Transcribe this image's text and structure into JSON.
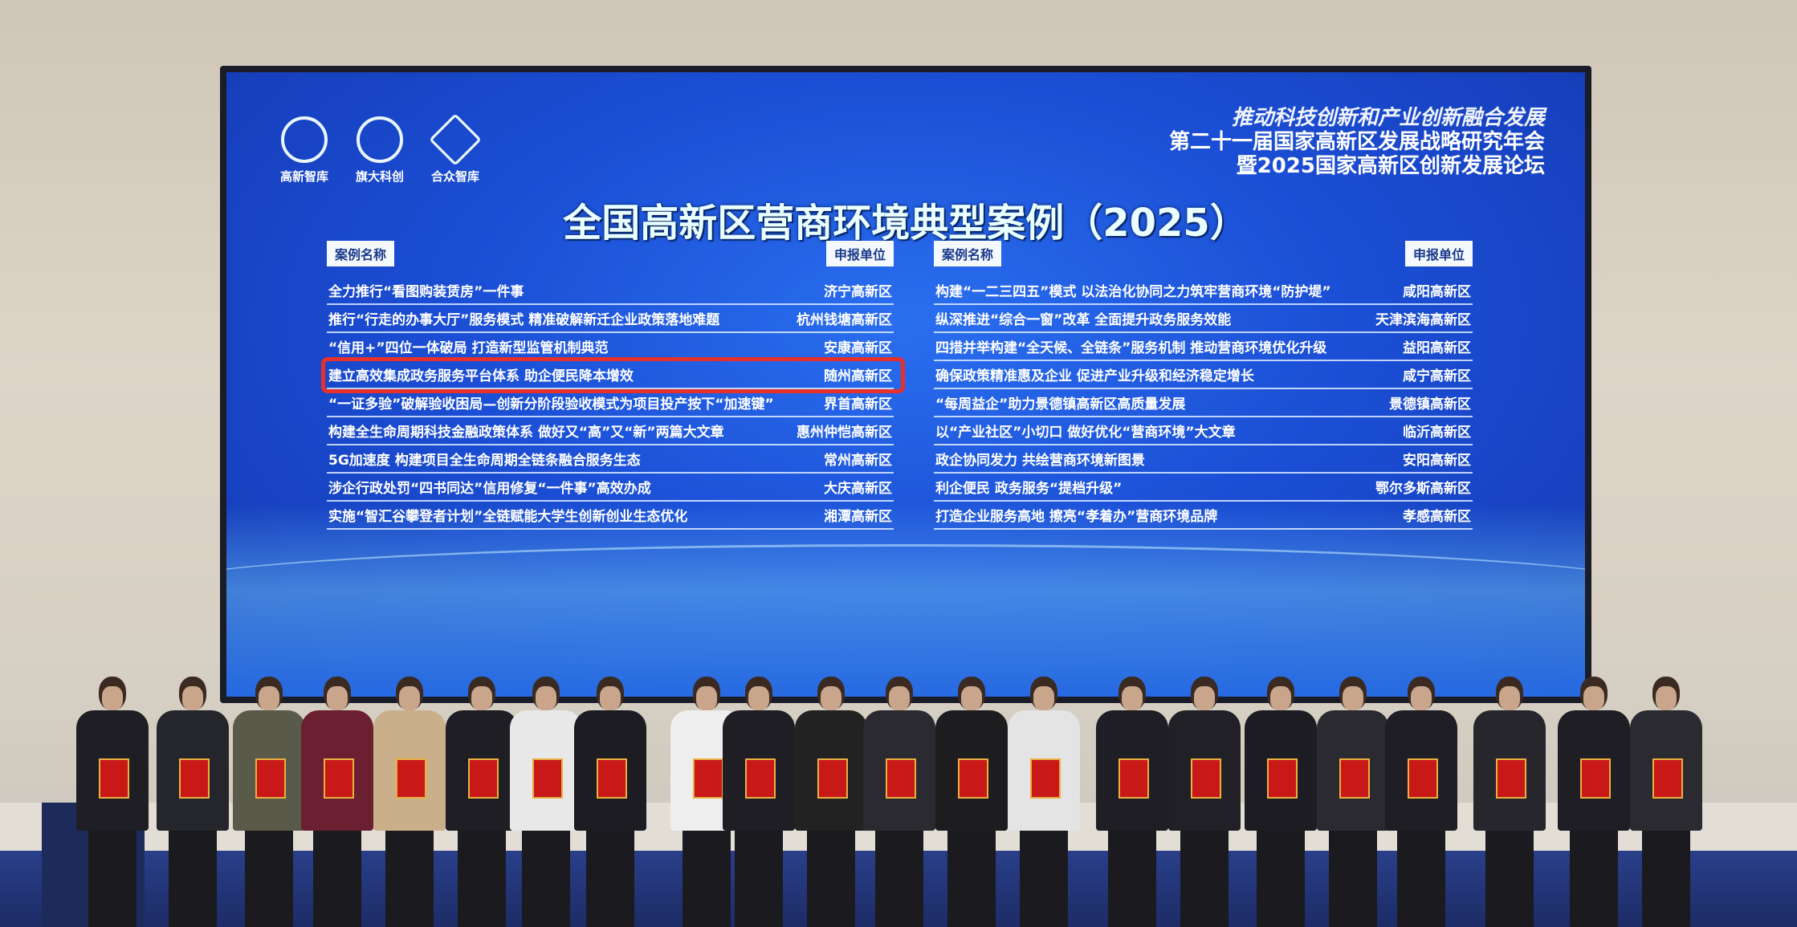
{
  "screen": {
    "logos": [
      {
        "label": "高新智库"
      },
      {
        "label": "旗大科创"
      },
      {
        "label": "合众智库"
      }
    ],
    "header_lines": [
      "推动科技创新和产业创新融合发展",
      "第二十一届国家高新区发展战略研究年会",
      "暨2025国家高新区创新发展论坛"
    ],
    "title": "全国高新区营商环境典型案例（2025）",
    "left_table": {
      "col_case": "案例名称",
      "col_unit": "申报单位",
      "rows": [
        {
          "case": "全力推行“看图购装赁房”一件事",
          "unit": "济宁高新区"
        },
        {
          "case": "推行“行走的办事大厅”服务模式 精准破解新迁企业政策落地难题",
          "unit": "杭州钱塘高新区"
        },
        {
          "case": "“信用+”四位一体破局 打造新型监管机制典范",
          "unit": "安康高新区"
        },
        {
          "case": "建立高效集成政务服务平台体系 助企便民降本增效",
          "unit": "随州高新区"
        },
        {
          "case": "“一证多验”破解验收困局—创新分阶段验收模式为项目投产按下“加速键”",
          "unit": "界首高新区"
        },
        {
          "case": "构建全生命周期科技金融政策体系 做好又“高”又“新”两篇大文章",
          "unit": "惠州仲恺高新区"
        },
        {
          "case": "5G加速度 构建项目全生命周期全链条融合服务生态",
          "unit": "常州高新区"
        },
        {
          "case": "涉企行政处罚“四书同达”信用修复“一件事”高效办成",
          "unit": "大庆高新区"
        },
        {
          "case": "实施“智汇谷攀登者计划”全链赋能大学生创新创业生态优化",
          "unit": "湘潭高新区"
        }
      ]
    },
    "right_table": {
      "col_case": "案例名称",
      "col_unit": "申报单位",
      "rows": [
        {
          "case": "构建“一二三四五”模式 以法治化协同之力筑牢营商环境“防护堤”",
          "unit": "咸阳高新区"
        },
        {
          "case": "纵深推进“综合一窗”改革 全面提升政务服务效能",
          "unit": "天津滨海高新区"
        },
        {
          "case": "四措并举构建“全天候、全链条”服务机制 推动营商环境优化升级",
          "unit": "益阳高新区"
        },
        {
          "case": "确保政策精准惠及企业 促进产业升级和经济稳定增长",
          "unit": "咸宁高新区"
        },
        {
          "case": "“每周益企”助力景德镇高新区高质量发展",
          "unit": "景德镇高新区"
        },
        {
          "case": "以“产业社区”小切口 做好优化“营商环境”大文章",
          "unit": "临沂高新区"
        },
        {
          "case": "政企协同发力 共绘营商环境新图景",
          "unit": "安阳高新区"
        },
        {
          "case": "利企便民 政务服务“提档升级”",
          "unit": "鄂尔多斯高新区"
        },
        {
          "case": "打造企业服务高地 擦亮“孝着办”营商环境品牌",
          "unit": "孝感高新区"
        }
      ]
    },
    "highlighted_row": "建立高效集成政务服务平台体系 助企便民降本增效",
    "highlight_color": "#e8302a"
  }
}
